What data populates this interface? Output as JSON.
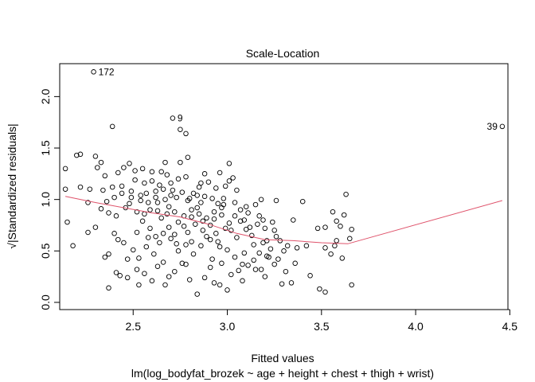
{
  "chart_data": {
    "type": "scatter",
    "title": "Scale-Location",
    "xlabel": "Fitted values",
    "ylabel": "√|Standardized residuals|",
    "subtitle": "lm(log_bodyfat_brozek ~ age + height + chest + thigh + wrist)",
    "xlim": [
      2.11,
      4.49
    ],
    "ylim": [
      -0.07,
      2.32
    ],
    "xticks": [
      "2.5",
      "3.0",
      "3.5",
      "4.0",
      "4.5"
    ],
    "yticks": [
      "0.0",
      "0.5",
      "1.0",
      "1.5",
      "2.0"
    ],
    "grid": false,
    "legend": "none",
    "colors": {
      "points": "#000000",
      "smooth": "#df536b"
    },
    "annotations": [
      {
        "label": "172",
        "x": 2.29,
        "y": 2.24
      },
      {
        "label": "9",
        "x": 2.71,
        "y": 1.79
      },
      {
        "label": "39",
        "x": 4.46,
        "y": 1.71
      }
    ],
    "points": [
      [
        2.29,
        2.24
      ],
      [
        2.71,
        1.79
      ],
      [
        4.46,
        1.71
      ],
      [
        2.39,
        1.71
      ],
      [
        2.78,
        1.64
      ],
      [
        2.75,
        1.68
      ],
      [
        2.14,
        1.3
      ],
      [
        2.2,
        1.43
      ],
      [
        2.22,
        1.44
      ],
      [
        2.3,
        1.42
      ],
      [
        2.35,
        1.23
      ],
      [
        2.42,
        1.26
      ],
      [
        2.45,
        1.31
      ],
      [
        2.51,
        1.28
      ],
      [
        2.55,
        1.3
      ],
      [
        2.6,
        1.27
      ],
      [
        2.65,
        1.27
      ],
      [
        2.67,
        1.36
      ],
      [
        2.75,
        1.36
      ],
      [
        2.79,
        1.41
      ],
      [
        2.88,
        1.25
      ],
      [
        2.96,
        1.26
      ],
      [
        3.01,
        1.35
      ],
      [
        3.03,
        1.21
      ],
      [
        2.14,
        1.1
      ],
      [
        2.22,
        1.12
      ],
      [
        2.27,
        1.1
      ],
      [
        2.34,
        1.09
      ],
      [
        2.39,
        1.12
      ],
      [
        2.44,
        1.06
      ],
      [
        2.49,
        1.08
      ],
      [
        2.54,
        1.04
      ],
      [
        2.57,
        1.06
      ],
      [
        2.62,
        1.08
      ],
      [
        2.66,
        1.1
      ],
      [
        2.7,
        1.04
      ],
      [
        2.73,
        1.02
      ],
      [
        2.76,
        1.07
      ],
      [
        2.8,
        1.01
      ],
      [
        2.84,
        1.04
      ],
      [
        2.88,
        1.03
      ],
      [
        2.92,
        1.01
      ],
      [
        2.98,
        1.01
      ],
      [
        3.04,
        0.97
      ],
      [
        3.1,
        0.93
      ],
      [
        3.15,
        0.95
      ],
      [
        3.18,
        1.0
      ],
      [
        3.26,
        0.99
      ],
      [
        3.4,
        0.98
      ],
      [
        3.63,
        1.05
      ],
      [
        2.15,
        0.78
      ],
      [
        2.18,
        0.55
      ],
      [
        2.26,
        0.97
      ],
      [
        2.33,
        0.91
      ],
      [
        2.37,
        0.87
      ],
      [
        2.41,
        0.84
      ],
      [
        2.46,
        0.92
      ],
      [
        2.52,
        0.88
      ],
      [
        2.56,
        0.86
      ],
      [
        2.59,
        0.9
      ],
      [
        2.63,
        0.89
      ],
      [
        2.68,
        0.86
      ],
      [
        2.72,
        0.88
      ],
      [
        2.77,
        0.84
      ],
      [
        2.81,
        0.83
      ],
      [
        2.85,
        0.86
      ],
      [
        2.89,
        0.82
      ],
      [
        2.93,
        0.81
      ],
      [
        2.97,
        0.85
      ],
      [
        3.01,
        0.77
      ],
      [
        3.07,
        0.79
      ],
      [
        3.12,
        0.73
      ],
      [
        3.16,
        0.76
      ],
      [
        3.2,
        0.72
      ],
      [
        3.25,
        0.7
      ],
      [
        3.35,
        0.8
      ],
      [
        3.42,
        0.55
      ],
      [
        3.52,
        0.73
      ],
      [
        3.56,
        0.88
      ],
      [
        3.6,
        0.74
      ],
      [
        3.66,
        0.71
      ],
      [
        2.3,
        0.73
      ],
      [
        2.37,
        0.47
      ],
      [
        2.42,
        0.61
      ],
      [
        2.45,
        0.58
      ],
      [
        2.5,
        0.51
      ],
      [
        2.53,
        0.43
      ],
      [
        2.57,
        0.54
      ],
      [
        2.61,
        0.47
      ],
      [
        2.64,
        0.58
      ],
      [
        2.66,
        0.67
      ],
      [
        2.7,
        0.62
      ],
      [
        2.74,
        0.5
      ],
      [
        2.78,
        0.56
      ],
      [
        2.82,
        0.47
      ],
      [
        2.86,
        0.55
      ],
      [
        2.91,
        0.61
      ],
      [
        2.95,
        0.59
      ],
      [
        3.0,
        0.51
      ],
      [
        3.04,
        0.44
      ],
      [
        3.09,
        0.48
      ],
      [
        3.14,
        0.41
      ],
      [
        3.17,
        0.48
      ],
      [
        3.22,
        0.44
      ],
      [
        3.26,
        0.64
      ],
      [
        3.32,
        0.55
      ],
      [
        3.44,
        0.26
      ],
      [
        3.52,
        0.53
      ],
      [
        3.58,
        0.6
      ],
      [
        3.61,
        0.43
      ],
      [
        3.65,
        0.62
      ],
      [
        2.37,
        0.14
      ],
      [
        2.43,
        0.26
      ],
      [
        2.47,
        0.24
      ],
      [
        2.52,
        0.32
      ],
      [
        2.56,
        0.28
      ],
      [
        2.6,
        0.21
      ],
      [
        2.63,
        0.35
      ],
      [
        2.67,
        0.17
      ],
      [
        2.72,
        0.3
      ],
      [
        2.76,
        0.38
      ],
      [
        2.8,
        0.22
      ],
      [
        2.84,
        0.08
      ],
      [
        2.88,
        0.24
      ],
      [
        2.91,
        0.34
      ],
      [
        2.96,
        0.17
      ],
      [
        3.0,
        0.12
      ],
      [
        3.06,
        0.31
      ],
      [
        3.11,
        0.36
      ],
      [
        3.15,
        0.32
      ],
      [
        3.2,
        0.25
      ],
      [
        3.25,
        0.37
      ],
      [
        3.29,
        0.18
      ],
      [
        3.36,
        0.38
      ],
      [
        3.49,
        0.13
      ],
      [
        3.52,
        0.1
      ],
      [
        3.66,
        0.17
      ],
      [
        2.36,
        0.98
      ],
      [
        2.4,
        1.02
      ],
      [
        2.48,
        0.96
      ],
      [
        2.58,
        0.97
      ],
      [
        2.69,
        0.93
      ],
      [
        2.74,
        0.78
      ],
      [
        2.83,
        0.76
      ],
      [
        2.87,
        0.7
      ],
      [
        2.94,
        0.67
      ],
      [
        2.99,
        0.72
      ],
      [
        3.05,
        0.63
      ],
      [
        3.13,
        0.65
      ],
      [
        3.19,
        0.58
      ],
      [
        3.23,
        0.52
      ],
      [
        3.28,
        0.6
      ],
      [
        3.3,
        0.5
      ],
      [
        3.37,
        0.53
      ],
      [
        3.55,
        0.47
      ],
      [
        3.58,
        0.79
      ],
      [
        3.62,
        0.85
      ],
      [
        2.6,
        1.18
      ],
      [
        2.64,
        1.14
      ],
      [
        2.7,
        1.16
      ],
      [
        2.74,
        1.2
      ],
      [
        2.78,
        1.22
      ],
      [
        2.85,
        1.12
      ],
      [
        2.9,
        1.17
      ],
      [
        2.94,
        1.11
      ],
      [
        2.99,
        1.13
      ],
      [
        3.05,
        1.09
      ],
      [
        2.51,
        1.19
      ],
      [
        2.56,
        1.16
      ],
      [
        2.44,
        1.13
      ],
      [
        2.31,
        1.31
      ],
      [
        2.33,
        1.36
      ],
      [
        2.48,
        1.35
      ],
      [
        2.59,
        0.72
      ],
      [
        2.69,
        0.73
      ],
      [
        2.79,
        0.68
      ],
      [
        2.89,
        0.64
      ],
      [
        2.97,
        0.92
      ],
      [
        3.07,
        0.9
      ],
      [
        3.11,
        0.87
      ],
      [
        3.17,
        0.84
      ],
      [
        2.26,
        0.68
      ],
      [
        2.4,
        0.67
      ],
      [
        2.47,
        0.42
      ],
      [
        2.58,
        0.63
      ],
      [
        2.62,
        0.64
      ],
      [
        2.73,
        0.57
      ],
      [
        2.81,
        0.59
      ],
      [
        2.92,
        0.42
      ],
      [
        2.97,
        0.38
      ],
      [
        3.02,
        0.27
      ],
      [
        3.08,
        0.37
      ],
      [
        3.18,
        0.32
      ],
      [
        3.21,
        0.45
      ],
      [
        3.34,
        0.19
      ],
      [
        2.41,
        0.29
      ],
      [
        2.53,
        0.17
      ],
      [
        2.66,
        0.39
      ],
      [
        2.69,
        0.25
      ],
      [
        2.78,
        0.37
      ],
      [
        2.93,
        0.19
      ],
      [
        3.08,
        0.21
      ],
      [
        2.82,
        1.06
      ],
      [
        2.86,
        0.97
      ],
      [
        2.95,
        0.96
      ],
      [
        2.62,
        1.02
      ],
      [
        2.67,
        1.0
      ],
      [
        2.81,
        0.9
      ],
      [
        2.93,
        0.88
      ],
      [
        2.98,
        0.95
      ],
      [
        3.04,
        0.84
      ],
      [
        3.09,
        0.8
      ],
      [
        3.19,
        0.8
      ],
      [
        3.24,
        0.78
      ],
      [
        3.14,
        0.56
      ],
      [
        3.21,
        0.6
      ],
      [
        3.27,
        0.42
      ],
      [
        3.31,
        0.3
      ],
      [
        3.48,
        0.72
      ],
      [
        3.57,
        0.55
      ],
      [
        2.35,
        0.44
      ],
      [
        2.52,
        0.68
      ],
      [
        2.55,
        0.79
      ],
      [
        2.65,
        0.82
      ],
      [
        2.72,
        0.66
      ],
      [
        2.77,
        0.74
      ],
      [
        2.87,
        0.79
      ],
      [
        2.91,
        0.75
      ],
      [
        2.96,
        0.54
      ],
      [
        3.02,
        0.7
      ],
      [
        2.49,
        1.02
      ],
      [
        2.54,
        0.99
      ],
      [
        2.63,
        0.97
      ],
      [
        2.71,
        1.09
      ],
      [
        2.79,
        0.99
      ],
      [
        3.01,
        1.18
      ],
      [
        2.86,
        1.16
      ],
      [
        2.68,
        1.24
      ],
      [
        2.84,
        0.92
      ],
      [
        3.1,
        0.71
      ]
    ],
    "smooth": [
      [
        2.14,
        1.03
      ],
      [
        2.3,
        0.97
      ],
      [
        2.45,
        0.92
      ],
      [
        2.6,
        0.87
      ],
      [
        2.75,
        0.83
      ],
      [
        2.9,
        0.76
      ],
      [
        3.05,
        0.67
      ],
      [
        3.2,
        0.61
      ],
      [
        3.35,
        0.6
      ],
      [
        3.5,
        0.58
      ],
      [
        3.64,
        0.57
      ],
      [
        4.46,
        0.99
      ]
    ]
  }
}
